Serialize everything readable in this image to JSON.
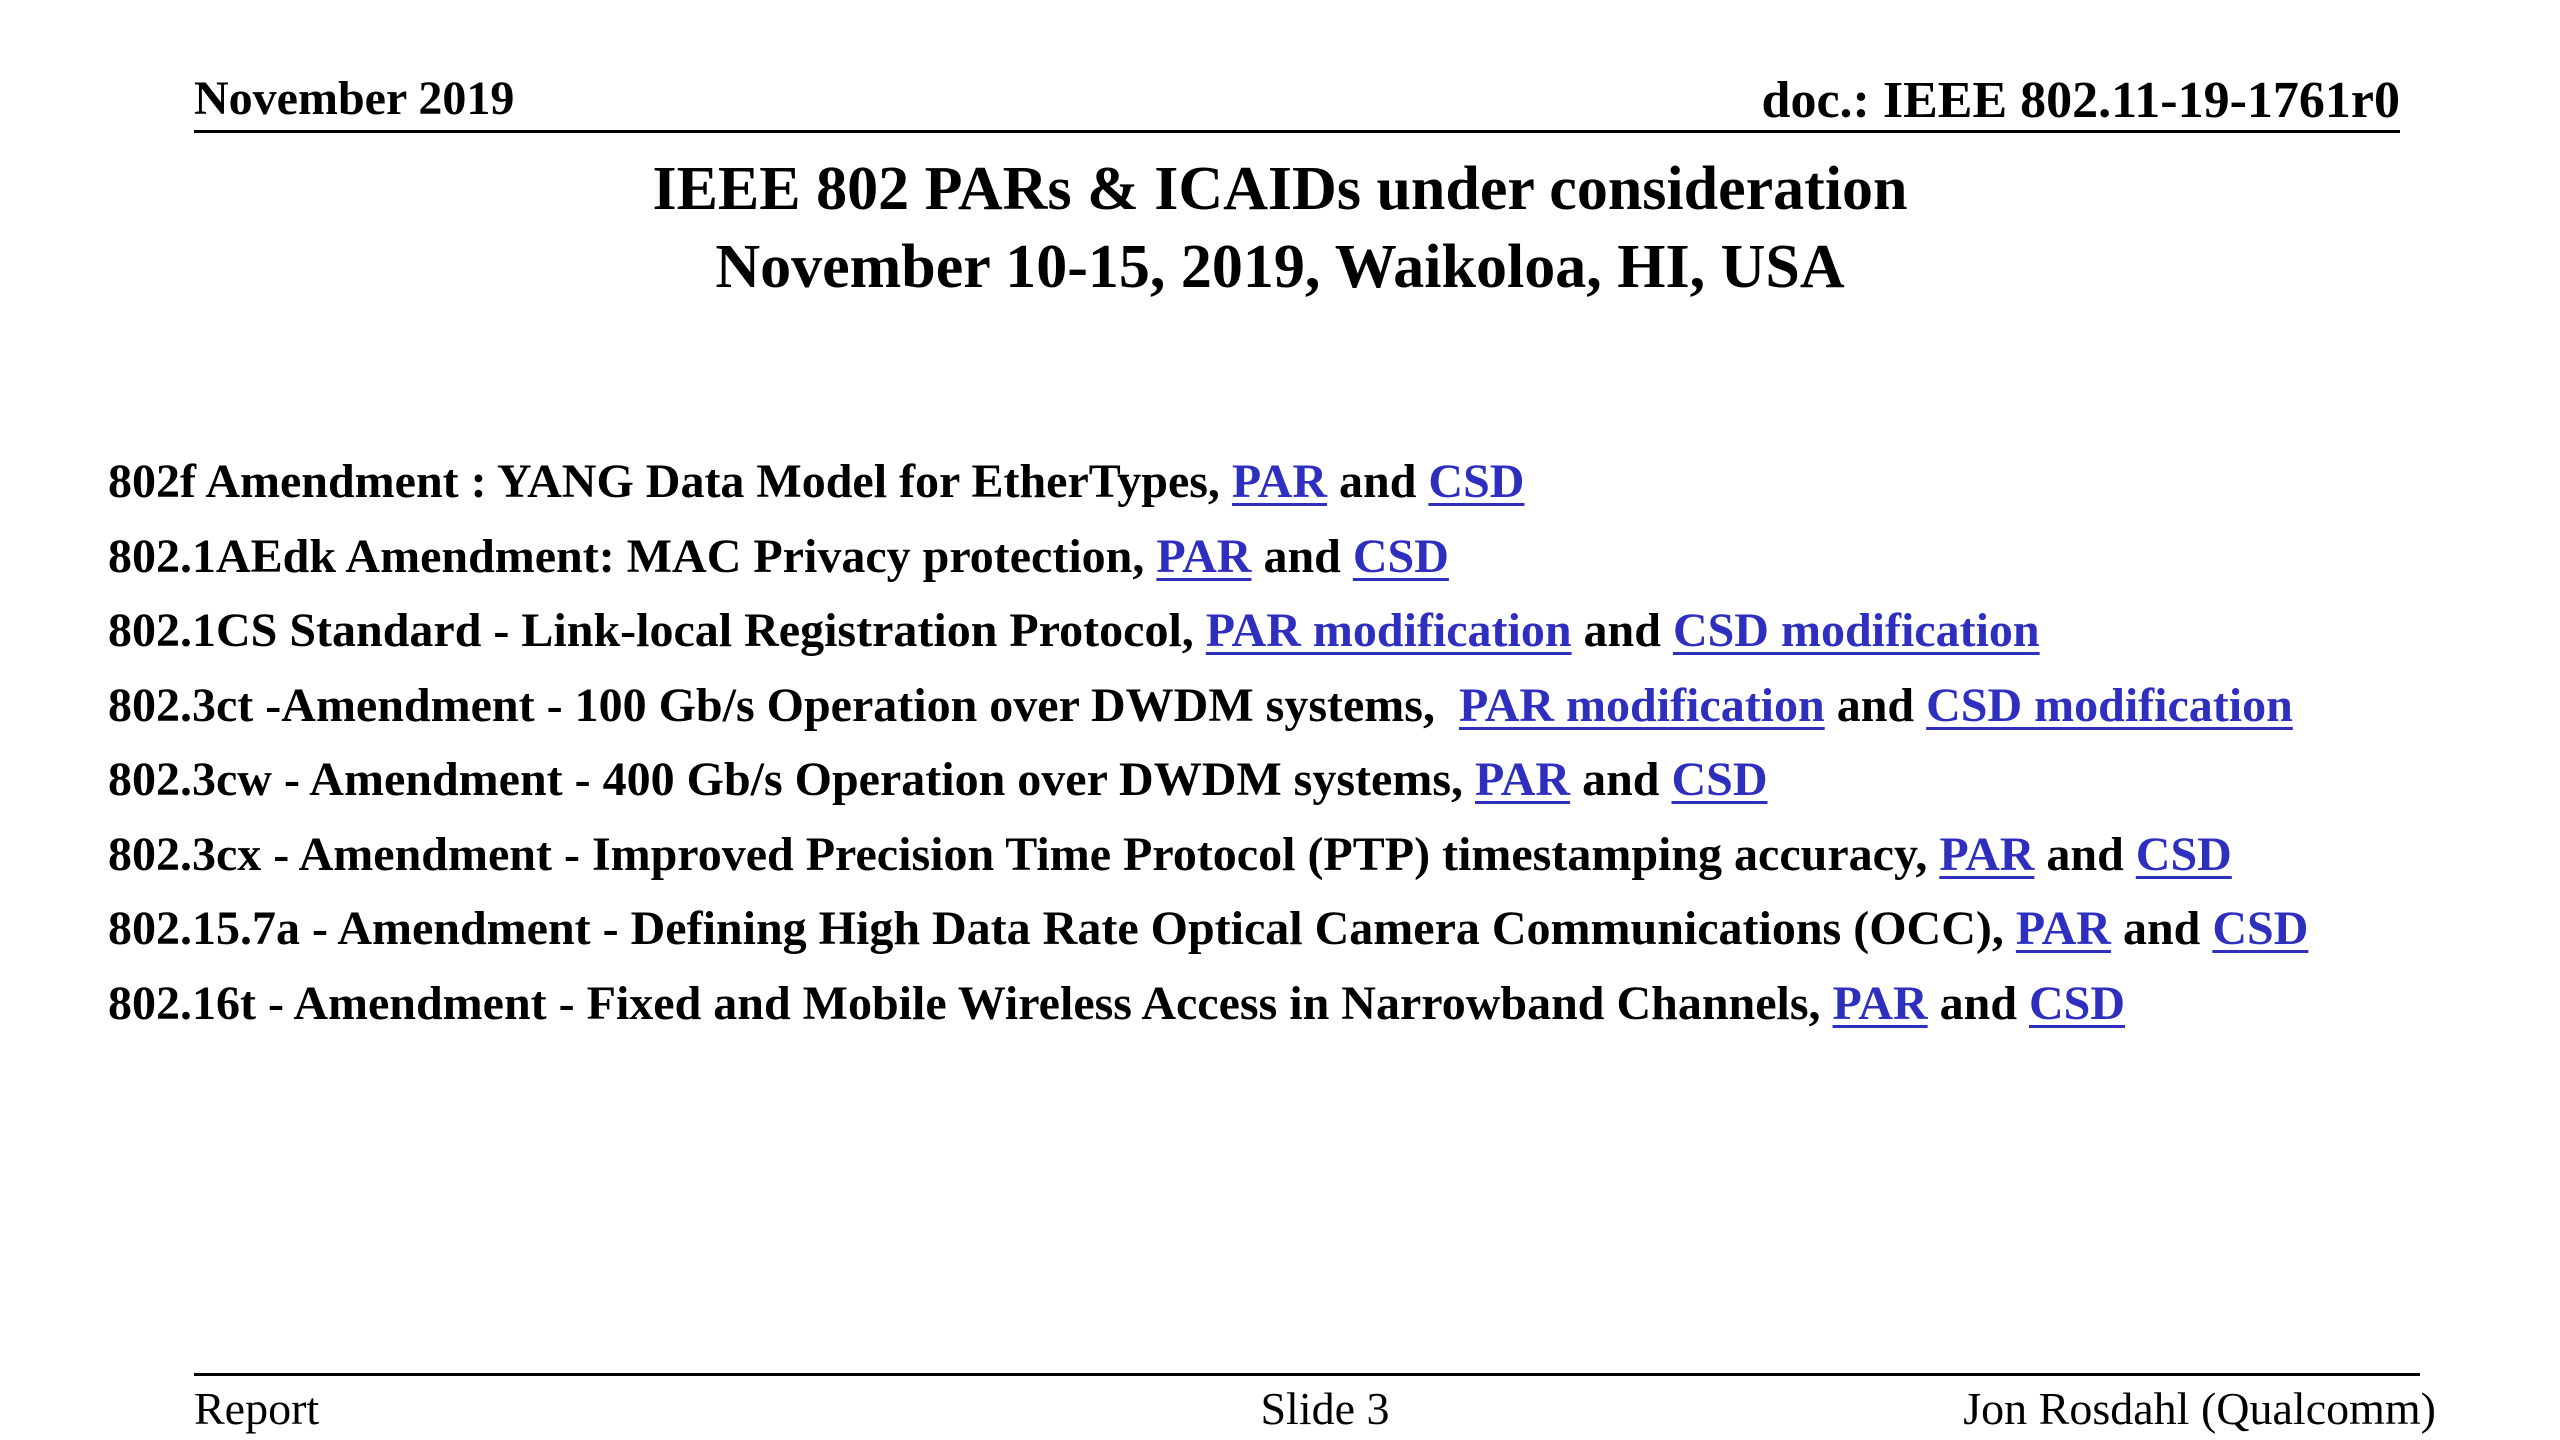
{
  "header": {
    "date": "November 2019",
    "doc_id": "doc.: IEEE 802.11-19-1761r0"
  },
  "title": {
    "line1": "IEEE 802 PARs & ICAIDs under consideration",
    "line2": "November 10-15, 2019, Waikoloa, HI, USA"
  },
  "items": [
    {
      "text": "802f Amendment : YANG Data Model for EtherTypes, ",
      "link1": "PAR",
      "joiner": " and ",
      "link2": "CSD"
    },
    {
      "text": "802.1AEdk Amendment: MAC Privacy protection, ",
      "link1": "PAR",
      "joiner": " and ",
      "link2": "CSD"
    },
    {
      "text": "802.1CS Standard - Link-local Registration Protocol, ",
      "link1": "PAR modification",
      "joiner": " and ",
      "link2": "CSD modification"
    },
    {
      "text": "802.3ct -Amendment - 100 Gb/s Operation over DWDM systems,  ",
      "link1": "PAR modification",
      "joiner": " and ",
      "link2": "CSD modification"
    },
    {
      "text": "802.3cw - Amendment - 400 Gb/s Operation over DWDM systems, ",
      "link1": "PAR",
      "joiner": " and ",
      "link2": "CSD"
    },
    {
      "text": "802.3cx - Amendment - Improved Precision Time Protocol (PTP) timestamping accuracy, ",
      "link1": "PAR",
      "joiner": " and ",
      "link2": "CSD"
    },
    {
      "text": "802.15.7a - Amendment - Defining High Data Rate Optical Camera Communications (OCC), ",
      "link1": "PAR",
      "joiner": " and ",
      "link2": "CSD"
    },
    {
      "text": "802.16t - Amendment - Fixed and Mobile Wireless Access in Narrowband Channels, ",
      "link1": "PAR",
      "joiner": " and ",
      "link2": "CSD"
    }
  ],
  "footer": {
    "left": "Report",
    "center": "Slide 3",
    "right": "Jon Rosdahl (Qualcomm)"
  },
  "colors": {
    "link": "#2f2fbf",
    "text": "#000000",
    "background": "#ffffff"
  }
}
